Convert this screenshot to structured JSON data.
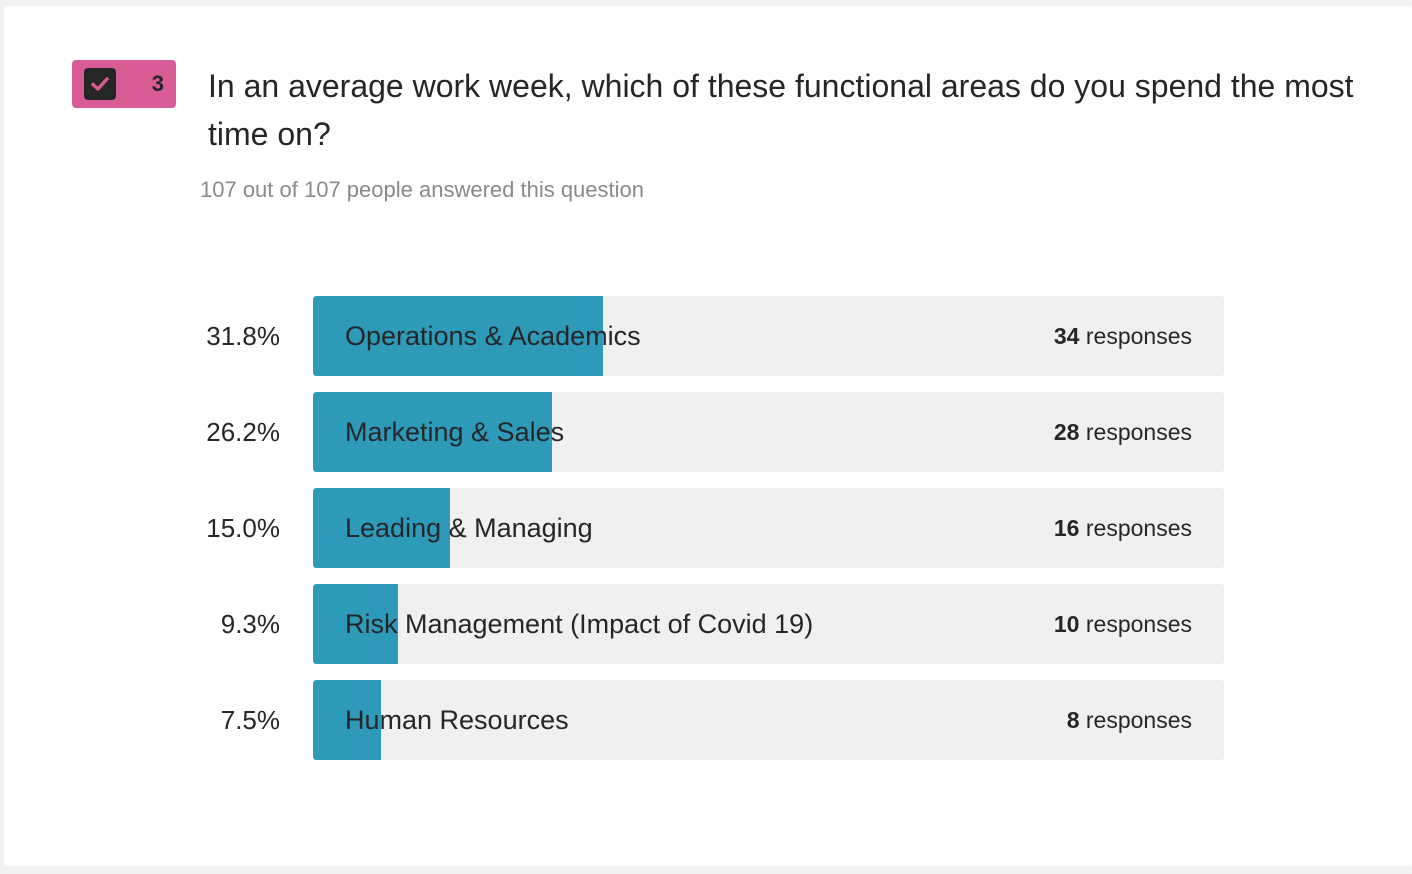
{
  "colors": {
    "badge": "#d95b96",
    "bar_fill": "#2e9ab9",
    "bar_track": "#f0f0f0"
  },
  "question": {
    "number": "3",
    "icon": "checkbox-checked-icon",
    "title": "In an average work week, which of these functional areas do you spend the most time on?",
    "answered": "107 out of 107 people answered this question"
  },
  "chart_data": {
    "type": "bar",
    "orientation": "horizontal",
    "categories": [
      "Operations & Academics",
      "Marketing & Sales",
      "Leading & Managing",
      "Risk Management (Impact of Covid 19)",
      "Human Resources"
    ],
    "percent_labels": [
      "31.8%",
      "26.2%",
      "15.0%",
      "9.3%",
      "7.5%"
    ],
    "values": [
      31.8,
      26.2,
      15.0,
      9.3,
      7.5
    ],
    "responses": [
      "34",
      "28",
      "16",
      "10",
      "8"
    ],
    "responses_suffix": "responses"
  }
}
